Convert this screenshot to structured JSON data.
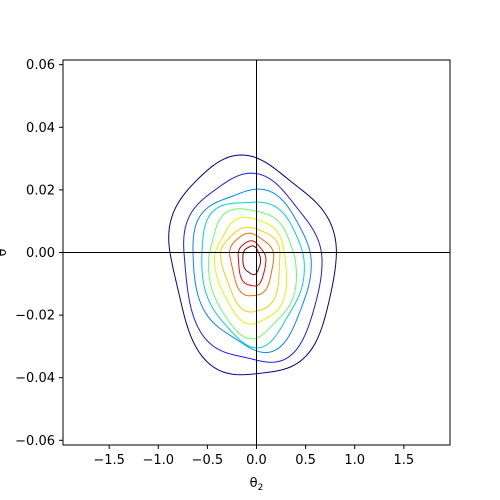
{
  "chart_data": {
    "type": "contour",
    "xlabel": "θ",
    "xlabel_subscript": "2",
    "ylabel": "θ",
    "xlim": [
      -1.97,
      1.97
    ],
    "ylim": [
      -0.0615,
      0.0615
    ],
    "x_ticks": [
      -1.5,
      -1.0,
      -0.5,
      0.0,
      0.5,
      1.0,
      1.5
    ],
    "x_tick_labels": [
      "−1.5",
      "−1.0",
      "−0.5",
      "0.0",
      "0.5",
      "1.0",
      "1.5"
    ],
    "y_ticks": [
      0.06,
      0.04,
      0.02,
      0.0,
      -0.02,
      -0.04,
      -0.06
    ],
    "y_tick_labels": [
      "0.06",
      "0.04",
      "0.02",
      "0.00",
      "−0.02",
      "−0.04",
      "−0.06"
    ],
    "crosshair": {
      "x": 0.0,
      "y": 0.0
    },
    "grid": false,
    "colormap": "jet",
    "center": {
      "x": -0.05,
      "y": -0.002
    },
    "levels": [
      {
        "level": 1,
        "color": "#00008b",
        "rx": 0.84,
        "ry_top": 0.032,
        "ry_bottom": 0.038
      },
      {
        "level": 2,
        "color": "#1a1aff",
        "rx": 0.7,
        "ry_top": 0.026,
        "ry_bottom": 0.034
      },
      {
        "level": 3,
        "color": "#0088ff",
        "rx": 0.6,
        "ry_top": 0.022,
        "ry_bottom": 0.029
      },
      {
        "level": 4,
        "color": "#00d4d4",
        "rx": 0.52,
        "ry_top": 0.019,
        "ry_bottom": 0.027
      },
      {
        "level": 5,
        "color": "#66ff66",
        "rx": 0.44,
        "ry_top": 0.016,
        "ry_bottom": 0.025
      },
      {
        "level": 6,
        "color": "#d4ff00",
        "rx": 0.36,
        "ry_top": 0.013,
        "ry_bottom": 0.021
      },
      {
        "level": 7,
        "color": "#ffcc00",
        "rx": 0.3,
        "ry_top": 0.01,
        "ry_bottom": 0.017
      },
      {
        "level": 8,
        "color": "#ff6600",
        "rx": 0.22,
        "ry_top": 0.008,
        "ry_bottom": 0.012
      },
      {
        "level": 9,
        "color": "#ee0000",
        "rx": 0.14,
        "ry_top": 0.0055,
        "ry_bottom": 0.009
      },
      {
        "level": 10,
        "color": "#880000",
        "rx": 0.09,
        "ry_top": 0.004,
        "ry_bottom": 0.005
      }
    ]
  }
}
